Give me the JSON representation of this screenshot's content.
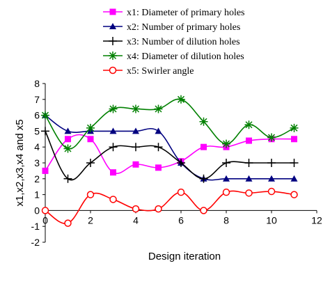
{
  "chart_data": {
    "type": "line",
    "xlabel": "Design iteration",
    "ylabel": "x1,x2,x3,x4 and x5",
    "xlim": [
      0,
      12
    ],
    "ylim": [
      -2,
      8
    ],
    "xticks": [
      "0",
      "2",
      "4",
      "6",
      "8",
      "10",
      "12"
    ],
    "yticks": [
      "-2",
      "-1",
      "0",
      "1",
      "2",
      "3",
      "4",
      "5",
      "6",
      "7",
      "8"
    ],
    "grid": false,
    "legend_position": "top",
    "x": [
      0,
      1,
      2,
      3,
      4,
      5,
      6,
      7,
      8,
      9,
      10,
      11
    ],
    "series": [
      {
        "name": "x1: Diameter of primary holes",
        "color": "#ff00ff",
        "marker": "square",
        "values": [
          2.5,
          4.5,
          4.5,
          2.4,
          2.9,
          2.7,
          3.1,
          4.0,
          4.0,
          4.4,
          4.5,
          4.5
        ]
      },
      {
        "name": "x2: Number of primary holes",
        "color": "#000080",
        "marker": "triangle",
        "values": [
          6.0,
          5.0,
          5.0,
          5.0,
          5.0,
          5.0,
          3.0,
          2.0,
          2.0,
          2.0,
          2.0,
          2.0
        ]
      },
      {
        "name": "x3: Number of dilution holes",
        "color": "#000000",
        "marker": "plus",
        "values": [
          5.0,
          2.0,
          3.0,
          4.0,
          4.0,
          4.0,
          3.0,
          2.0,
          3.0,
          3.0,
          3.0,
          3.0
        ]
      },
      {
        "name": "x4: Diameter of dilution holes",
        "color": "#008000",
        "marker": "asterisk",
        "values": [
          6.0,
          3.9,
          5.2,
          6.4,
          6.4,
          6.4,
          7.0,
          5.6,
          4.2,
          5.4,
          4.6,
          5.2
        ]
      },
      {
        "name": "x5: Swirler angle",
        "color": "#ff0000",
        "marker": "circle",
        "values": [
          0.0,
          -0.8,
          1.0,
          0.7,
          0.1,
          0.1,
          1.15,
          0.0,
          1.15,
          1.1,
          1.2,
          1.0
        ]
      }
    ]
  }
}
